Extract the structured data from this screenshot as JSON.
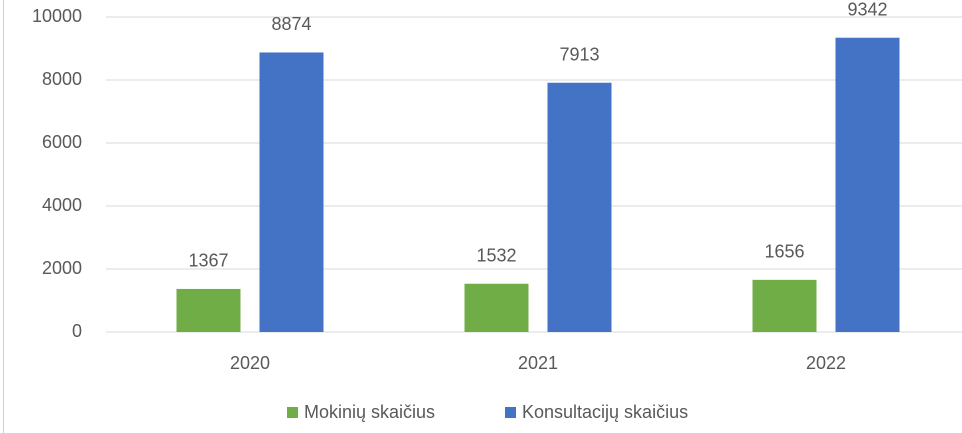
{
  "chart_data": {
    "type": "bar",
    "categories": [
      "2020",
      "2021",
      "2022"
    ],
    "series": [
      {
        "name": "Mokinių skaičius",
        "color": "#70ad47",
        "values": [
          1367,
          1532,
          1656
        ]
      },
      {
        "name": "Konsultacijų skaičius",
        "color": "#4472c4",
        "values": [
          8874,
          7913,
          9342
        ]
      }
    ],
    "ylim": [
      0,
      10000
    ],
    "yticks": [
      0,
      2000,
      4000,
      6000,
      8000,
      10000
    ],
    "grid": true,
    "legend": "bottom"
  }
}
